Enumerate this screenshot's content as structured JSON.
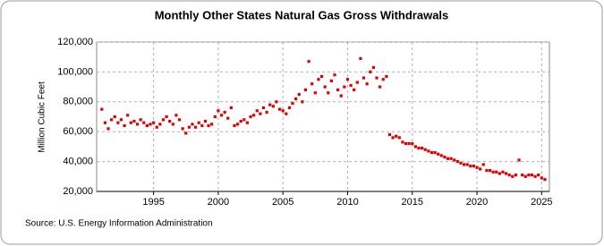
{
  "chart_data": {
    "type": "scatter",
    "title": "Monthly Other States Natural Gas Gross Withdrawals",
    "y_label": "Million Cubic Feet",
    "source": "Source: U.S. Energy Information Administration",
    "color": "#e00000",
    "grid": true,
    "xlim": [
      1990.6,
      2025.6
    ],
    "xticks": [
      1995,
      2000,
      2005,
      2010,
      2015,
      2020,
      2025
    ],
    "ylim": [
      20000,
      120000
    ],
    "yticks": [
      {
        "value": 20000,
        "label": "20,000"
      },
      {
        "value": 40000,
        "label": "40,000"
      },
      {
        "value": 60000,
        "label": "60,000"
      },
      {
        "value": 80000,
        "label": "80,000"
      },
      {
        "value": 100000,
        "label": "100,000"
      },
      {
        "value": 120000,
        "label": "120,000"
      }
    ],
    "x": [
      1991,
      1991.25,
      1991.5,
      1991.75,
      1992,
      1992.25,
      1992.5,
      1992.75,
      1993,
      1993.25,
      1993.5,
      1993.75,
      1994,
      1994.25,
      1994.5,
      1994.75,
      1995,
      1995.25,
      1995.5,
      1995.75,
      1996,
      1996.25,
      1996.5,
      1996.75,
      1997,
      1997.25,
      1997.5,
      1997.75,
      1998,
      1998.25,
      1998.5,
      1998.75,
      1999,
      1999.25,
      1999.5,
      1999.75,
      2000,
      2000.25,
      2000.5,
      2000.75,
      2001,
      2001.25,
      2001.5,
      2001.75,
      2002,
      2002.25,
      2002.5,
      2002.75,
      2003,
      2003.25,
      2003.5,
      2003.75,
      2004,
      2004.25,
      2004.5,
      2004.75,
      2005,
      2005.25,
      2005.5,
      2005.75,
      2006,
      2006.25,
      2006.5,
      2006.75,
      2007,
      2007.25,
      2007.5,
      2007.75,
      2008,
      2008.25,
      2008.5,
      2008.75,
      2009,
      2009.25,
      2009.5,
      2009.75,
      2010,
      2010.25,
      2010.5,
      2010.75,
      2011,
      2011.25,
      2011.5,
      2011.75,
      2012,
      2012.25,
      2012.5,
      2012.75,
      2013,
      2013.25,
      2013.5,
      2013.75,
      2014,
      2014.25,
      2014.5,
      2014.75,
      2015,
      2015.25,
      2015.5,
      2015.75,
      2016,
      2016.25,
      2016.5,
      2016.75,
      2017,
      2017.25,
      2017.5,
      2017.75,
      2018,
      2018.25,
      2018.5,
      2018.75,
      2019,
      2019.25,
      2019.5,
      2019.75,
      2020,
      2020.25,
      2020.5,
      2020.75,
      2021,
      2021.25,
      2021.5,
      2021.75,
      2022,
      2022.25,
      2022.5,
      2022.75,
      2023,
      2023.25,
      2023.5,
      2023.75,
      2024,
      2024.25,
      2024.5,
      2024.75,
      2025,
      2025.25
    ],
    "values": [
      75000,
      66000,
      62000,
      68000,
      70000,
      66000,
      68000,
      64000,
      71000,
      66000,
      67000,
      65000,
      68000,
      66000,
      64000,
      65000,
      66000,
      63000,
      65000,
      68000,
      70000,
      67000,
      65000,
      71000,
      68000,
      62000,
      59000,
      63000,
      65000,
      63000,
      66000,
      64000,
      67000,
      64000,
      65000,
      70000,
      74000,
      71000,
      73000,
      69000,
      76000,
      64000,
      65000,
      67000,
      68000,
      66000,
      70000,
      71000,
      74000,
      72000,
      76000,
      73000,
      78000,
      77000,
      80000,
      75000,
      74000,
      72000,
      76000,
      79000,
      82000,
      85000,
      80000,
      88000,
      107000,
      92000,
      86000,
      95000,
      97000,
      90000,
      86000,
      94000,
      98000,
      88000,
      84000,
      90000,
      95000,
      91000,
      88000,
      93000,
      109000,
      96000,
      92000,
      100000,
      103000,
      96000,
      90000,
      95000,
      97000,
      58000,
      56000,
      57000,
      56000,
      53000,
      52000,
      52000,
      52000,
      50000,
      49000,
      49000,
      48000,
      47000,
      46000,
      46000,
      45000,
      44000,
      43000,
      42000,
      42000,
      41000,
      40000,
      39000,
      38000,
      38000,
      37000,
      37000,
      36000,
      35000,
      38000,
      34000,
      34000,
      33000,
      33000,
      32000,
      33000,
      32000,
      31000,
      30000,
      31000,
      41000,
      31000,
      30000,
      31000,
      31000,
      30000,
      31000,
      29000,
      28000
    ]
  }
}
